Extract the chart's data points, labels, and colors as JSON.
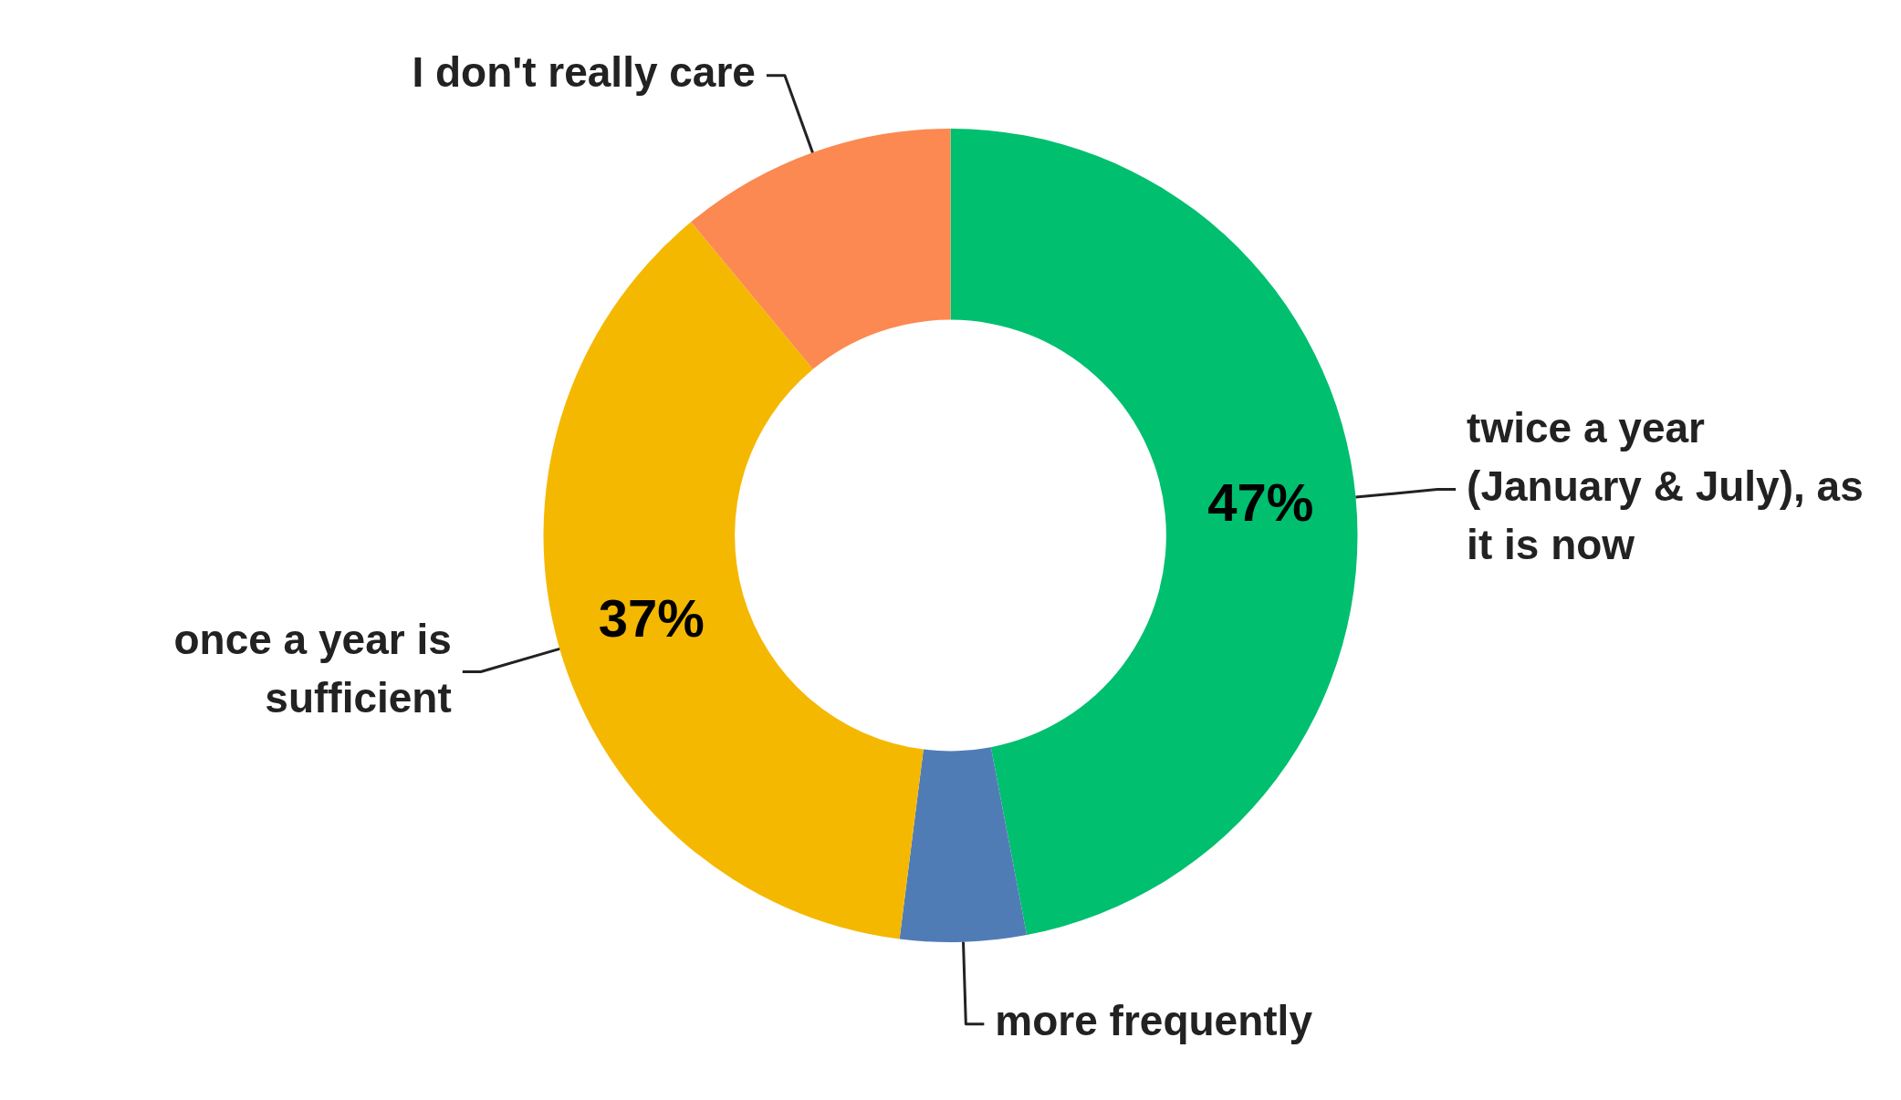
{
  "chart_data": {
    "type": "donut",
    "categories": [
      "twice a year (January & July), as it is now",
      "more frequently",
      "once a year is sufficient",
      "I don't really care"
    ],
    "values": [
      47,
      5,
      37,
      11
    ],
    "colors": [
      "#00bf6f",
      "#507cb6",
      "#f5b800",
      "#fb8951"
    ],
    "value_labels": [
      "47%",
      null,
      "37%",
      null
    ]
  }
}
